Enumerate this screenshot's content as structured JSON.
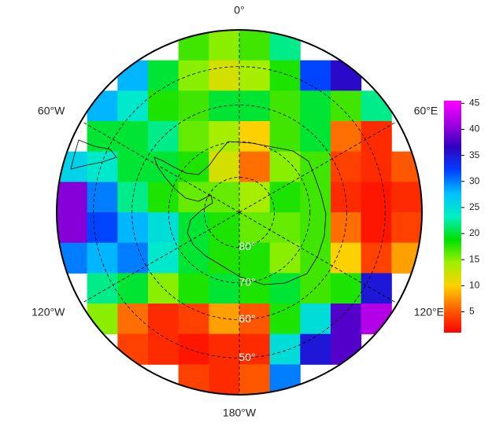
{
  "map": {
    "projection": "south-polar-stereographic",
    "lat_lim": [
      -90,
      -41
    ],
    "lat_circles": [
      {
        "value": -80,
        "label": "80°"
      },
      {
        "value": -70,
        "label": "70°"
      },
      {
        "value": -60,
        "label": "60°"
      },
      {
        "value": -50,
        "label": "50°"
      }
    ],
    "lon_lines": [
      {
        "value": 0,
        "label": "0°"
      },
      {
        "value": 60,
        "label": "60°E"
      },
      {
        "value": 120,
        "label": "120°E"
      },
      {
        "value": -180,
        "label": "180°W"
      },
      {
        "value": -120,
        "label": "120°W"
      },
      {
        "value": -60,
        "label": "60°W"
      }
    ],
    "grid": [
      [
        null,
        null,
        null,
        null,
        17,
        15,
        17,
        22,
        null,
        null,
        null,
        null
      ],
      [
        null,
        null,
        28,
        20,
        15,
        12,
        14,
        18,
        32,
        36,
        null,
        null
      ],
      [
        null,
        28,
        24,
        18,
        17,
        20,
        20,
        17,
        20,
        17,
        22,
        null
      ],
      [
        null,
        20,
        20,
        22,
        16,
        14,
        10,
        17,
        20,
        6,
        3,
        null
      ],
      [
        26,
        24,
        20,
        20,
        18,
        12,
        6,
        15,
        17,
        4,
        3,
        5
      ],
      [
        40,
        30,
        22,
        18,
        16,
        16,
        14,
        18,
        17,
        3,
        2,
        3
      ],
      [
        40,
        32,
        28,
        25,
        20,
        18,
        16,
        16,
        17,
        6,
        2,
        4
      ],
      [
        30,
        28,
        30,
        24,
        20,
        18,
        18,
        15,
        17,
        10,
        4,
        8
      ],
      [
        null,
        22,
        20,
        15,
        18,
        20,
        18,
        20,
        17,
        18,
        35,
        null
      ],
      [
        null,
        15,
        6,
        3,
        4,
        8,
        5,
        18,
        25,
        38,
        42,
        null
      ],
      [
        null,
        null,
        4,
        3,
        2,
        3,
        3,
        25,
        35,
        38,
        null,
        null
      ],
      [
        null,
        null,
        null,
        null,
        4,
        3,
        5,
        30,
        null,
        null,
        null,
        null
      ]
    ],
    "colormap": [
      "#ff0000",
      "#ff6000",
      "#ffd000",
      "#a0f000",
      "#00e000",
      "#00f0c0",
      "#00c0ff",
      "#0040ff",
      "#3000c0",
      "#a000e0",
      "#ff00ff"
    ],
    "colorbar": {
      "lim": [
        1,
        45.5
      ],
      "ticks": [
        5,
        10,
        15,
        20,
        25,
        30,
        35,
        40,
        45
      ]
    }
  }
}
